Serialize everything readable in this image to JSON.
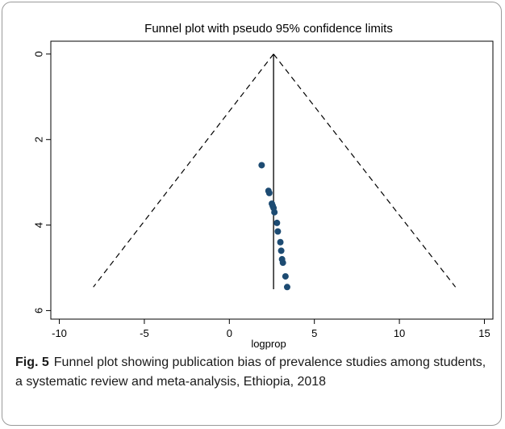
{
  "chart_data": {
    "type": "scatter",
    "title": "Funnel plot with pseudo 95% confidence limits",
    "xlabel": "logprop",
    "ylabel": "",
    "xlim": [
      -10.5,
      15.5
    ],
    "ylim": [
      6.2,
      -0.3
    ],
    "y_reversed": true,
    "xticks": [
      "-10",
      "-5",
      "0",
      "5",
      "10",
      "15"
    ],
    "yticks": [
      "0",
      "2",
      "4",
      "6"
    ],
    "grid": false,
    "legend": "none",
    "colors": {
      "points": "#1d4b72",
      "lines": "#000000"
    },
    "pooled_estimate": 2.6,
    "funnel": {
      "apex": [
        2.6,
        0
      ],
      "left_end": [
        -8.0,
        5.45
      ],
      "right_end": [
        13.3,
        5.45
      ],
      "vertical_line_bottom": 5.5
    },
    "points": [
      {
        "x": 1.9,
        "y": 2.6
      },
      {
        "x": 2.3,
        "y": 3.2
      },
      {
        "x": 2.35,
        "y": 3.25
      },
      {
        "x": 2.5,
        "y": 3.5
      },
      {
        "x": 2.55,
        "y": 3.55
      },
      {
        "x": 2.6,
        "y": 3.6
      },
      {
        "x": 2.65,
        "y": 3.7
      },
      {
        "x": 2.8,
        "y": 3.95
      },
      {
        "x": 2.85,
        "y": 4.15
      },
      {
        "x": 3.0,
        "y": 4.4
      },
      {
        "x": 3.05,
        "y": 4.6
      },
      {
        "x": 3.1,
        "y": 4.8
      },
      {
        "x": 3.15,
        "y": 4.88
      },
      {
        "x": 3.3,
        "y": 5.2
      },
      {
        "x": 3.4,
        "y": 5.45
      }
    ]
  },
  "caption": {
    "label": "Fig. 5",
    "text": "Funnel plot showing publication bias of prevalence studies among students, a systematic review and meta-analysis, Ethiopia, 2018"
  }
}
